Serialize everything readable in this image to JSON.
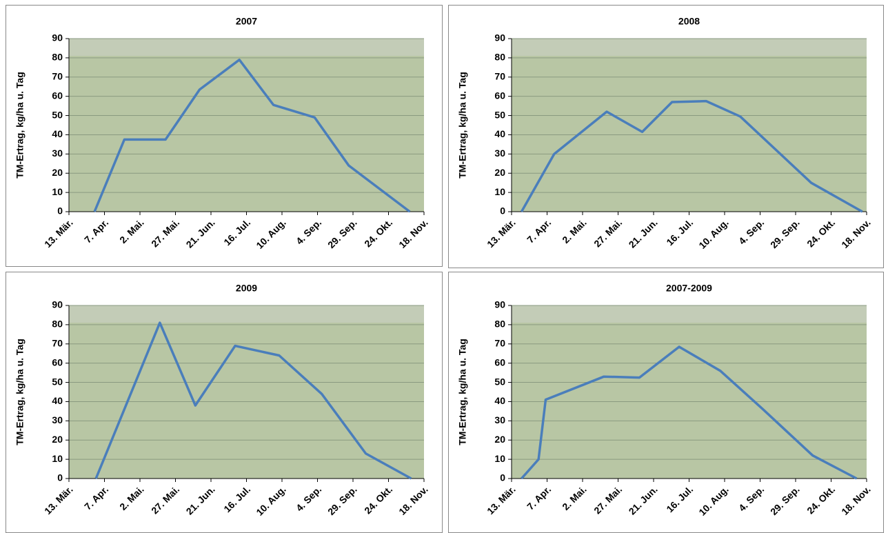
{
  "chart_data": [
    {
      "type": "line",
      "title": "2007",
      "y_label": "TM-Ertrag, kg/ha u. Tag",
      "color": "#4a7ebb",
      "grid": true,
      "x": [
        90,
        111,
        140,
        164,
        192,
        216,
        245,
        269,
        312
      ],
      "values": [
        0,
        37.5,
        37.5,
        63.5,
        79,
        55.5,
        49,
        24,
        0
      ],
      "xlim": [
        72,
        322
      ],
      "xticks": [
        {
          "value": 72,
          "label": "13. Mär."
        },
        {
          "value": 97,
          "label": "7. Apr."
        },
        {
          "value": 122,
          "label": "2. Mai."
        },
        {
          "value": 147,
          "label": "27. Mai."
        },
        {
          "value": 172,
          "label": "21. Jun."
        },
        {
          "value": 197,
          "label": "16. Jul."
        },
        {
          "value": 222,
          "label": "10. Aug."
        },
        {
          "value": 247,
          "label": "4. Sep."
        },
        {
          "value": 272,
          "label": "29. Sep."
        },
        {
          "value": 297,
          "label": "24. Okt."
        },
        {
          "value": 322,
          "label": "18. Nov."
        }
      ],
      "ylim": [
        0,
        90
      ],
      "yticks": [
        0,
        10,
        20,
        30,
        40,
        50,
        60,
        70,
        80,
        90
      ]
    },
    {
      "type": "line",
      "title": "2008",
      "y_label": "TM-Ertrag, kg/ha u. Tag",
      "color": "#4a7ebb",
      "grid": true,
      "x": [
        79,
        102,
        139,
        164,
        185,
        209,
        233,
        283,
        319
      ],
      "values": [
        0,
        30,
        52,
        41.5,
        57,
        57.5,
        49.5,
        15,
        0
      ],
      "xlim": [
        72,
        322
      ],
      "xticks": [
        {
          "value": 72,
          "label": "13. Mär."
        },
        {
          "value": 97,
          "label": "7. Apr."
        },
        {
          "value": 122,
          "label": "2. Mai."
        },
        {
          "value": 147,
          "label": "27. Mai."
        },
        {
          "value": 172,
          "label": "21. Jun."
        },
        {
          "value": 197,
          "label": "16. Jul."
        },
        {
          "value": 222,
          "label": "10. Aug."
        },
        {
          "value": 247,
          "label": "4. Sep."
        },
        {
          "value": 272,
          "label": "29. Sep."
        },
        {
          "value": 297,
          "label": "24. Okt."
        },
        {
          "value": 322,
          "label": "18. Nov."
        }
      ],
      "ylim": [
        0,
        90
      ],
      "yticks": [
        0,
        10,
        20,
        30,
        40,
        50,
        60,
        70,
        80,
        90
      ]
    },
    {
      "type": "line",
      "title": "2009",
      "y_label": "TM-Ertrag, kg/ha u. Tag",
      "color": "#4a7ebb",
      "grid": true,
      "x": [
        91,
        136,
        161,
        189,
        220,
        250,
        281,
        313
      ],
      "values": [
        0,
        81,
        38,
        69,
        64,
        44,
        13,
        0
      ],
      "xlim": [
        72,
        322
      ],
      "xticks": [
        {
          "value": 72,
          "label": "13. Mär."
        },
        {
          "value": 97,
          "label": "7. Apr."
        },
        {
          "value": 122,
          "label": "2. Mai."
        },
        {
          "value": 147,
          "label": "27. Mai."
        },
        {
          "value": 172,
          "label": "21. Jun."
        },
        {
          "value": 197,
          "label": "16. Jul."
        },
        {
          "value": 222,
          "label": "10. Aug."
        },
        {
          "value": 247,
          "label": "4. Sep."
        },
        {
          "value": 272,
          "label": "29. Sep."
        },
        {
          "value": 297,
          "label": "24. Okt."
        },
        {
          "value": 322,
          "label": "18. Nov."
        }
      ],
      "ylim": [
        0,
        90
      ],
      "yticks": [
        0,
        10,
        20,
        30,
        40,
        50,
        60,
        70,
        80,
        90
      ]
    },
    {
      "type": "line",
      "title": "2007-2009",
      "y_label": "TM-Ertrag, kg/ha u. Tag",
      "color": "#4a7ebb",
      "grid": true,
      "x": [
        79,
        91,
        96,
        137,
        162,
        190,
        219,
        249,
        284,
        315
      ],
      "values": [
        0,
        10,
        41,
        53,
        52.5,
        68.5,
        56,
        36,
        12,
        0
      ],
      "xlim": [
        72,
        322
      ],
      "xticks": [
        {
          "value": 72,
          "label": "13. Mär."
        },
        {
          "value": 97,
          "label": "7. Apr."
        },
        {
          "value": 122,
          "label": "2. Mai."
        },
        {
          "value": 147,
          "label": "27. Mai."
        },
        {
          "value": 172,
          "label": "21. Jun."
        },
        {
          "value": 197,
          "label": "16. Jul."
        },
        {
          "value": 222,
          "label": "10. Aug."
        },
        {
          "value": 247,
          "label": "4. Sep."
        },
        {
          "value": 272,
          "label": "29. Sep."
        },
        {
          "value": 297,
          "label": "24. Okt."
        },
        {
          "value": 322,
          "label": "18. Nov."
        }
      ],
      "ylim": [
        0,
        90
      ],
      "yticks": [
        0,
        10,
        20,
        30,
        40,
        50,
        60,
        70,
        80,
        90
      ]
    }
  ]
}
